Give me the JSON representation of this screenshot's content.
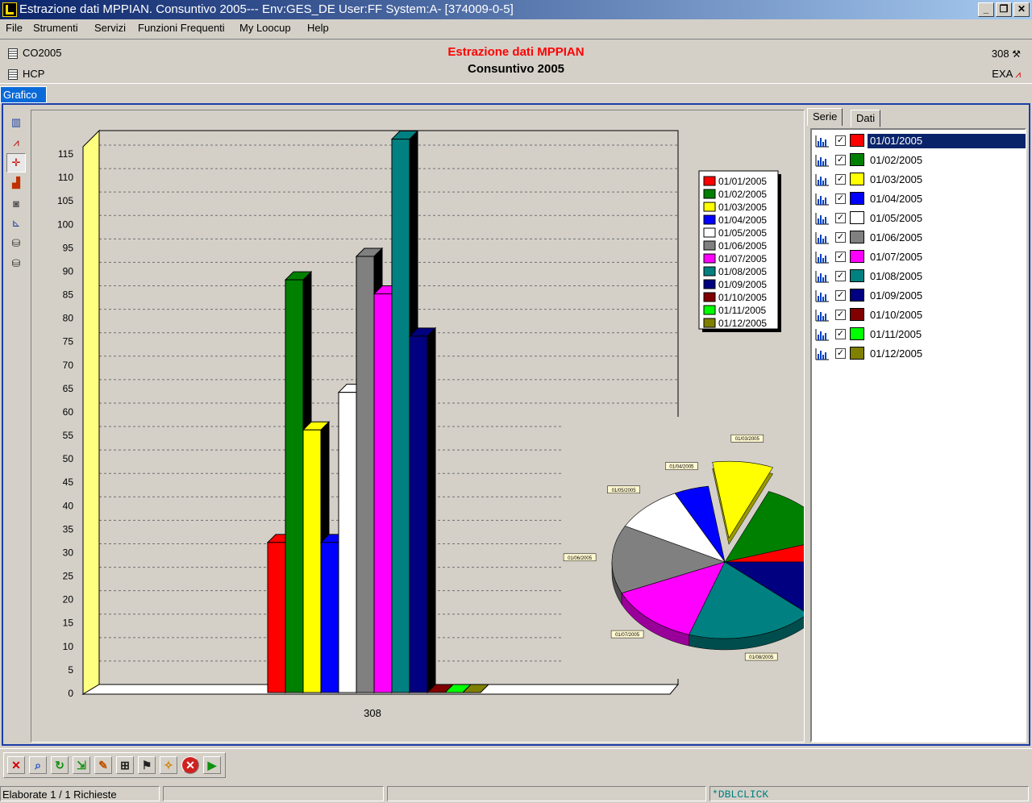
{
  "window": {
    "title": "Estrazione dati MPPIAN. Consuntivo 2005--- Env:GES_DE User:FF System:A- [374009-0-5]",
    "controls": [
      "_",
      "❐",
      "✕"
    ]
  },
  "menu": [
    "File",
    "Strumenti",
    "Servizi",
    "Funzioni Frequenti",
    "My Loocup",
    "Help"
  ],
  "header": {
    "left_top": "CO2005",
    "left_bottom": "HCP",
    "title": "Estrazione dati MPPIAN",
    "subtitle": "Consuntivo 2005",
    "right_top": "308",
    "right_bottom": "EXA",
    "title_color": "#ff0000"
  },
  "main_tab": "Grafico",
  "side_tools": [
    "book-icon",
    "line-chart-icon",
    "crosshair-icon",
    "bar-chart-icon",
    "camera-icon",
    "axis-icon",
    "binoculars-icon",
    "binoculars-alt-icon"
  ],
  "right_panel": {
    "tabs": [
      "Serie",
      "Dati"
    ],
    "series": [
      {
        "label": "01/01/2005",
        "color": "#ff0000",
        "checked": true,
        "selected": true
      },
      {
        "label": "01/02/2005",
        "color": "#008000",
        "checked": true
      },
      {
        "label": "01/03/2005",
        "color": "#ffff00",
        "checked": true
      },
      {
        "label": "01/04/2005",
        "color": "#0000ff",
        "checked": true
      },
      {
        "label": "01/05/2005",
        "color": "#ffffff",
        "checked": true
      },
      {
        "label": "01/06/2005",
        "color": "#808080",
        "checked": true
      },
      {
        "label": "01/07/2005",
        "color": "#ff00ff",
        "checked": true
      },
      {
        "label": "01/08/2005",
        "color": "#008080",
        "checked": true
      },
      {
        "label": "01/09/2005",
        "color": "#000080",
        "checked": true
      },
      {
        "label": "01/10/2005",
        "color": "#800000",
        "checked": true
      },
      {
        "label": "01/11/2005",
        "color": "#00ff00",
        "checked": true
      },
      {
        "label": "01/12/2005",
        "color": "#808000",
        "checked": true
      }
    ]
  },
  "chart_data": [
    {
      "type": "bar",
      "categories": [
        "308"
      ],
      "ylim": [
        0,
        115
      ],
      "yticks": [
        0,
        5,
        10,
        15,
        20,
        25,
        30,
        35,
        40,
        45,
        50,
        55,
        60,
        65,
        70,
        75,
        80,
        85,
        90,
        95,
        100,
        105,
        110,
        115
      ],
      "grid": true,
      "legend": "top-right",
      "series": [
        {
          "name": "01/01/2005",
          "color": "#ff0000",
          "values": [
            32
          ]
        },
        {
          "name": "01/02/2005",
          "color": "#008000",
          "values": [
            88
          ]
        },
        {
          "name": "01/03/2005",
          "color": "#ffff00",
          "values": [
            56
          ]
        },
        {
          "name": "01/04/2005",
          "color": "#0000ff",
          "values": [
            32
          ]
        },
        {
          "name": "01/05/2005",
          "color": "#ffffff",
          "values": [
            64
          ]
        },
        {
          "name": "01/06/2005",
          "color": "#808080",
          "values": [
            93
          ]
        },
        {
          "name": "01/07/2005",
          "color": "#ff00ff",
          "values": [
            85
          ]
        },
        {
          "name": "01/08/2005",
          "color": "#008080",
          "values": [
            118
          ]
        },
        {
          "name": "01/09/2005",
          "color": "#000080",
          "values": [
            76
          ]
        },
        {
          "name": "01/10/2005",
          "color": "#800000",
          "values": [
            0
          ]
        },
        {
          "name": "01/11/2005",
          "color": "#00ff00",
          "values": [
            0
          ]
        },
        {
          "name": "01/12/2005",
          "color": "#808000",
          "values": [
            0
          ]
        }
      ]
    },
    {
      "type": "pie",
      "legend": "top-right",
      "slices": [
        {
          "label": "01/01/2005",
          "color": "#ff0000",
          "value": 32
        },
        {
          "label": "01/02/2005",
          "color": "#008000",
          "value": 88
        },
        {
          "label": "01/03/2005",
          "color": "#ffff00",
          "value": 56,
          "exploded": true
        },
        {
          "label": "01/04/2005",
          "color": "#0000ff",
          "value": 32
        },
        {
          "label": "01/05/2005",
          "color": "#ffffff",
          "value": 64
        },
        {
          "label": "01/06/2005",
          "color": "#808080",
          "value": 93
        },
        {
          "label": "01/07/2005",
          "color": "#ff00ff",
          "value": 85
        },
        {
          "label": "01/08/2005",
          "color": "#008080",
          "value": 118
        },
        {
          "label": "01/09/2005",
          "color": "#000080",
          "value": 76
        },
        {
          "label": "01/10/2005",
          "color": "#800000",
          "value": 0
        },
        {
          "label": "01/11/2005",
          "color": "#00ff00",
          "value": 0
        },
        {
          "label": "01/12/2005",
          "color": "#808000",
          "value": 0
        }
      ]
    }
  ],
  "bottom_toolbar": [
    "close-icon",
    "search-icon",
    "refresh-icon",
    "export-icon",
    "edit-icon",
    "cart-icon",
    "flag-icon",
    "magic-icon",
    "stop-icon",
    "play-icon"
  ],
  "status": {
    "left": "Elaborate 1 / 1 Richieste",
    "right": "*DBLCLICK"
  }
}
